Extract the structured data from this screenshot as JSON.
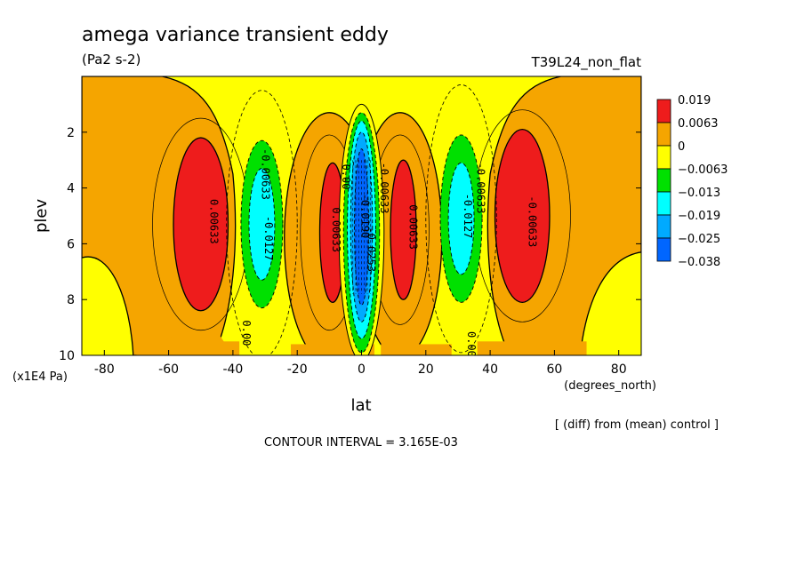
{
  "chart_data": {
    "type": "contour",
    "title": "amega variance transient eddy",
    "units": "(Pa2 s-2)",
    "run_label": "T39L24_non_flat",
    "xlabel": "lat",
    "xunits": "(degrees_north)",
    "ylabel": "plev",
    "yunits": "(x1E4 Pa)",
    "xlim": [
      -87,
      87
    ],
    "ylim": [
      10,
      0
    ],
    "xticks": [
      "-80",
      "-60",
      "-40",
      "-20",
      "0",
      "20",
      "40",
      "60",
      "80"
    ],
    "xtick_values": [
      -80,
      -60,
      -40,
      -20,
      0,
      20,
      40,
      60,
      80
    ],
    "yticks": [
      "2",
      "4",
      "6",
      "8",
      "10"
    ],
    "ytick_values": [
      2,
      4,
      6,
      8,
      10
    ],
    "footnote": "[ (diff) from (mean) control ]",
    "contour_interval": "CONTOUR INTERVAL = 3.165E-03",
    "legend": {
      "labels": [
        "0.019",
        "0.0063",
        "0",
        "−0.0063",
        "−0.013",
        "−0.019",
        "−0.025",
        "−0.038"
      ],
      "colors": [
        "#ee1c1c",
        "#f5a500",
        "#ffff00",
        "#00e000",
        "#00ffff",
        "#00aaff",
        "#0066ff"
      ]
    },
    "colors": {
      "red": "#ee1c1c",
      "orange": "#f5a500",
      "yellow": "#ffff00",
      "green": "#00e000",
      "cyan": "#00ffff",
      "lightblue": "#00aaff",
      "blue": "#0066ff"
    },
    "features": [
      {
        "name": "sh-polar-positive",
        "lat": -50,
        "plev": 5.3,
        "peak": 0.015,
        "level": "red"
      },
      {
        "name": "sh-midlat-negative",
        "lat": -30,
        "plev": 5.2,
        "peak": -0.016,
        "level": "cyan"
      },
      {
        "name": "sh-subtrop-positive",
        "lat": -9,
        "plev": 5.5,
        "peak": 0.009,
        "level": "red"
      },
      {
        "name": "equatorial-negative",
        "lat": 0,
        "plev": 5.5,
        "peak": -0.035,
        "level": "blue"
      },
      {
        "name": "nh-subtrop-positive",
        "lat": 12,
        "plev": 5.4,
        "peak": 0.009,
        "level": "red"
      },
      {
        "name": "nh-midlat-negative",
        "lat": 31,
        "plev": 5.0,
        "peak": -0.016,
        "level": "cyan"
      },
      {
        "name": "nh-polar-positive",
        "lat": 50,
        "plev": 5.0,
        "peak": 0.015,
        "level": "red"
      }
    ],
    "contour_labels": [
      {
        "text": "0.00633",
        "lat": -47,
        "plev": 5.2
      },
      {
        "text": "-0.0127",
        "lat": -30,
        "plev": 5.8
      },
      {
        "text": "-0.00633",
        "lat": -31,
        "plev": 3.5
      },
      {
        "text": "0.00",
        "lat": -37,
        "plev": 9.2
      },
      {
        "text": "0.00633",
        "lat": -9,
        "plev": 5.5
      },
      {
        "text": "0.00",
        "lat": -6,
        "plev": 3.6
      },
      {
        "text": "-0.0190",
        "lat": 0,
        "plev": 5.0
      },
      {
        "text": "-0.0253",
        "lat": 2,
        "plev": 6.2
      },
      {
        "text": "-0.00633",
        "lat": 6,
        "plev": 4.0
      },
      {
        "text": "0.00633",
        "lat": 15,
        "plev": 5.4
      },
      {
        "text": "-0.0127",
        "lat": 32,
        "plev": 5.0
      },
      {
        "text": "-0.00633",
        "lat": 36,
        "plev": 4.0
      },
      {
        "text": "0.00",
        "lat": 33,
        "plev": 9.6
      },
      {
        "text": "-0.00633",
        "lat": 52,
        "plev": 5.2
      }
    ]
  }
}
